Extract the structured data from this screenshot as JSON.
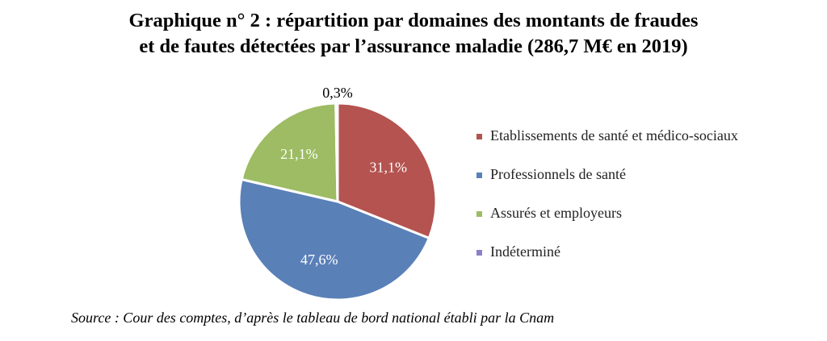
{
  "chart_data": {
    "type": "pie",
    "title_lines": [
      "Graphique n° 2 : répartition par domaines des montants de fraudes",
      "et de fautes détectées par l’assurance maladie (286,7 M€ en 2019)"
    ],
    "slices": [
      {
        "label": "Etablissements de santé et médico-sociaux",
        "value": 31.1,
        "value_label": "31,1%",
        "color": "#b45350"
      },
      {
        "label": "Professionnels de santé",
        "value": 47.6,
        "value_label": "47,6%",
        "color": "#5a80b8"
      },
      {
        "label": "Assurés et employeurs",
        "value": 21.1,
        "value_label": "21,1%",
        "color": "#9dbc63"
      },
      {
        "label": "Indéterminé",
        "value": 0.3,
        "value_label": "0,3%",
        "color": "#8d7fc8"
      }
    ],
    "legend_position": "right",
    "start": "top, clockwise"
  },
  "source": "Source : Cour des comptes, d’après le tableau de bord national établi par la Cnam"
}
